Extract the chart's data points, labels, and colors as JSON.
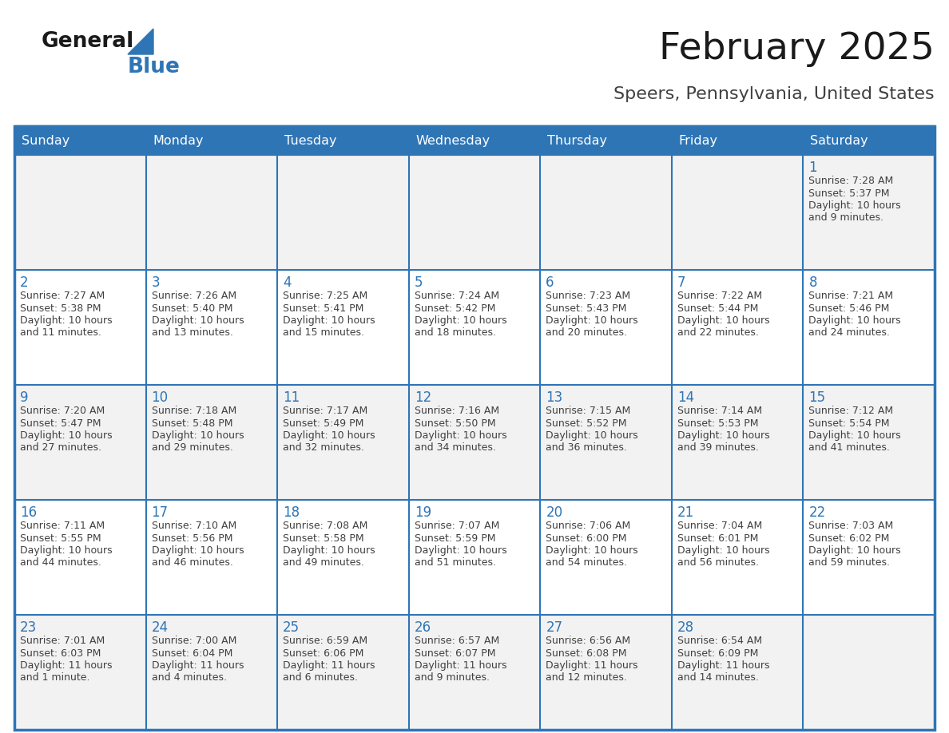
{
  "title": "February 2025",
  "subtitle": "Speers, Pennsylvania, United States",
  "header_bg": "#2E75B6",
  "header_text_color": "#FFFFFF",
  "cell_bg_light": "#F2F2F2",
  "cell_bg_white": "#FFFFFF",
  "border_color": "#2E75B6",
  "day_names": [
    "Sunday",
    "Monday",
    "Tuesday",
    "Wednesday",
    "Thursday",
    "Friday",
    "Saturday"
  ],
  "title_color": "#1a1a1a",
  "subtitle_color": "#404040",
  "day_number_color": "#2E75B6",
  "cell_text_color": "#404040",
  "logo_general_color": "#1a1a1a",
  "logo_blue_color": "#2E75B6",
  "figwidth": 11.88,
  "figheight": 9.18,
  "dpi": 100,
  "calendar": [
    [
      null,
      null,
      null,
      null,
      null,
      null,
      {
        "day": "1",
        "sunrise": "7:28 AM",
        "sunset": "5:37 PM",
        "daylight": "10 hours\nand 9 minutes."
      }
    ],
    [
      {
        "day": "2",
        "sunrise": "7:27 AM",
        "sunset": "5:38 PM",
        "daylight": "10 hours\nand 11 minutes."
      },
      {
        "day": "3",
        "sunrise": "7:26 AM",
        "sunset": "5:40 PM",
        "daylight": "10 hours\nand 13 minutes."
      },
      {
        "day": "4",
        "sunrise": "7:25 AM",
        "sunset": "5:41 PM",
        "daylight": "10 hours\nand 15 minutes."
      },
      {
        "day": "5",
        "sunrise": "7:24 AM",
        "sunset": "5:42 PM",
        "daylight": "10 hours\nand 18 minutes."
      },
      {
        "day": "6",
        "sunrise": "7:23 AM",
        "sunset": "5:43 PM",
        "daylight": "10 hours\nand 20 minutes."
      },
      {
        "day": "7",
        "sunrise": "7:22 AM",
        "sunset": "5:44 PM",
        "daylight": "10 hours\nand 22 minutes."
      },
      {
        "day": "8",
        "sunrise": "7:21 AM",
        "sunset": "5:46 PM",
        "daylight": "10 hours\nand 24 minutes."
      }
    ],
    [
      {
        "day": "9",
        "sunrise": "7:20 AM",
        "sunset": "5:47 PM",
        "daylight": "10 hours\nand 27 minutes."
      },
      {
        "day": "10",
        "sunrise": "7:18 AM",
        "sunset": "5:48 PM",
        "daylight": "10 hours\nand 29 minutes."
      },
      {
        "day": "11",
        "sunrise": "7:17 AM",
        "sunset": "5:49 PM",
        "daylight": "10 hours\nand 32 minutes."
      },
      {
        "day": "12",
        "sunrise": "7:16 AM",
        "sunset": "5:50 PM",
        "daylight": "10 hours\nand 34 minutes."
      },
      {
        "day": "13",
        "sunrise": "7:15 AM",
        "sunset": "5:52 PM",
        "daylight": "10 hours\nand 36 minutes."
      },
      {
        "day": "14",
        "sunrise": "7:14 AM",
        "sunset": "5:53 PM",
        "daylight": "10 hours\nand 39 minutes."
      },
      {
        "day": "15",
        "sunrise": "7:12 AM",
        "sunset": "5:54 PM",
        "daylight": "10 hours\nand 41 minutes."
      }
    ],
    [
      {
        "day": "16",
        "sunrise": "7:11 AM",
        "sunset": "5:55 PM",
        "daylight": "10 hours\nand 44 minutes."
      },
      {
        "day": "17",
        "sunrise": "7:10 AM",
        "sunset": "5:56 PM",
        "daylight": "10 hours\nand 46 minutes."
      },
      {
        "day": "18",
        "sunrise": "7:08 AM",
        "sunset": "5:58 PM",
        "daylight": "10 hours\nand 49 minutes."
      },
      {
        "day": "19",
        "sunrise": "7:07 AM",
        "sunset": "5:59 PM",
        "daylight": "10 hours\nand 51 minutes."
      },
      {
        "day": "20",
        "sunrise": "7:06 AM",
        "sunset": "6:00 PM",
        "daylight": "10 hours\nand 54 minutes."
      },
      {
        "day": "21",
        "sunrise": "7:04 AM",
        "sunset": "6:01 PM",
        "daylight": "10 hours\nand 56 minutes."
      },
      {
        "day": "22",
        "sunrise": "7:03 AM",
        "sunset": "6:02 PM",
        "daylight": "10 hours\nand 59 minutes."
      }
    ],
    [
      {
        "day": "23",
        "sunrise": "7:01 AM",
        "sunset": "6:03 PM",
        "daylight": "11 hours\nand 1 minute."
      },
      {
        "day": "24",
        "sunrise": "7:00 AM",
        "sunset": "6:04 PM",
        "daylight": "11 hours\nand 4 minutes."
      },
      {
        "day": "25",
        "sunrise": "6:59 AM",
        "sunset": "6:06 PM",
        "daylight": "11 hours\nand 6 minutes."
      },
      {
        "day": "26",
        "sunrise": "6:57 AM",
        "sunset": "6:07 PM",
        "daylight": "11 hours\nand 9 minutes."
      },
      {
        "day": "27",
        "sunrise": "6:56 AM",
        "sunset": "6:08 PM",
        "daylight": "11 hours\nand 12 minutes."
      },
      {
        "day": "28",
        "sunrise": "6:54 AM",
        "sunset": "6:09 PM",
        "daylight": "11 hours\nand 14 minutes."
      },
      null
    ]
  ]
}
